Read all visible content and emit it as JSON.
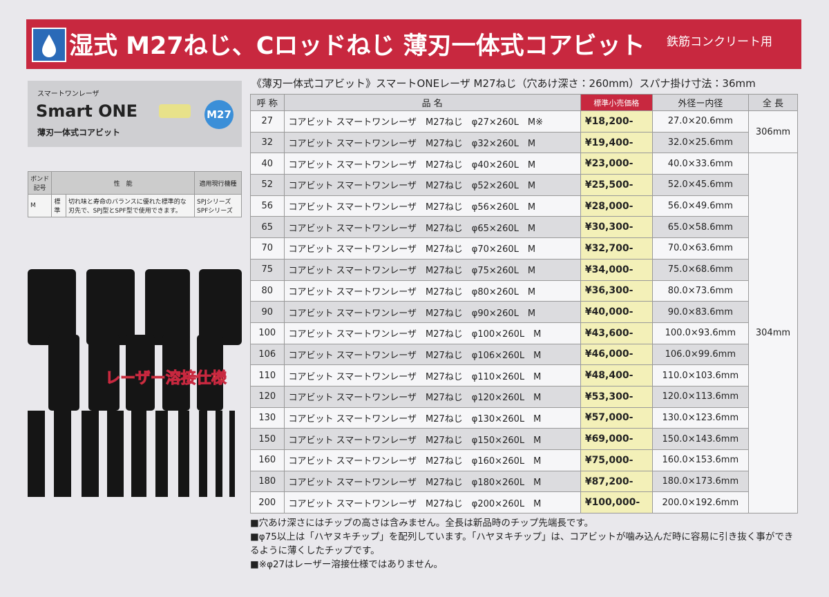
{
  "header": {
    "title": "湿式 M27ねじ、Cロッドねじ 薄刃一体式コアビット",
    "subtitle": "鉄筋コンクリート用"
  },
  "product": {
    "kana": "スマートワンレーザ",
    "brand": "Smart ONE",
    "badge": "M27",
    "type": "薄刃一体式コアビット"
  },
  "spec_table": {
    "headers": [
      "ボンド記号",
      "性　能",
      "適用現行機種"
    ],
    "rows": [
      [
        "M",
        "標準",
        "切れ味と寿命のバランスに優れた標準的な刃先で、SPJ型とSPF型で使用できます。",
        "SPJシリーズ SPFシリーズ"
      ]
    ]
  },
  "image_label": "レーザー溶接仕様",
  "table": {
    "caption": "《薄刃一体式コアビット》スマートONEレーザ M27ねじ（穴あけ深さ：260mm）スパナ掛け寸法：36mm",
    "headers": [
      "呼 称",
      "品 名",
      "標準小売価格",
      "外径ー内径",
      "全 長"
    ],
    "rows": [
      [
        "27",
        "コアビット スマートワンレーザ　M27ねじ　φ27×260L　M※",
        "¥18,200-",
        "27.0×20.6mm"
      ],
      [
        "32",
        "コアビット スマートワンレーザ　M27ねじ　φ32×260L　M",
        "¥19,400-",
        "32.0×25.6mm"
      ],
      [
        "40",
        "コアビット スマートワンレーザ　M27ねじ　φ40×260L　M",
        "¥23,000-",
        "40.0×33.6mm"
      ],
      [
        "52",
        "コアビット スマートワンレーザ　M27ねじ　φ52×260L　M",
        "¥25,500-",
        "52.0×45.6mm"
      ],
      [
        "56",
        "コアビット スマートワンレーザ　M27ねじ　φ56×260L　M",
        "¥28,000-",
        "56.0×49.6mm"
      ],
      [
        "65",
        "コアビット スマートワンレーザ　M27ねじ　φ65×260L　M",
        "¥30,300-",
        "65.0×58.6mm"
      ],
      [
        "70",
        "コアビット スマートワンレーザ　M27ねじ　φ70×260L　M",
        "¥32,700-",
        "70.0×63.6mm"
      ],
      [
        "75",
        "コアビット スマートワンレーザ　M27ねじ　φ75×260L　M",
        "¥34,000-",
        "75.0×68.6mm"
      ],
      [
        "80",
        "コアビット スマートワンレーザ　M27ねじ　φ80×260L　M",
        "¥36,300-",
        "80.0×73.6mm"
      ],
      [
        "90",
        "コアビット スマートワンレーザ　M27ねじ　φ90×260L　M",
        "¥40,000-",
        "90.0×83.6mm"
      ],
      [
        "100",
        "コアビット スマートワンレーザ　M27ねじ　φ100×260L　M",
        "¥43,600-",
        "100.0×93.6mm"
      ],
      [
        "106",
        "コアビット スマートワンレーザ　M27ねじ　φ106×260L　M",
        "¥46,000-",
        "106.0×99.6mm"
      ],
      [
        "110",
        "コアビット スマートワンレーザ　M27ねじ　φ110×260L　M",
        "¥48,400-",
        "110.0×103.6mm"
      ],
      [
        "120",
        "コアビット スマートワンレーザ　M27ねじ　φ120×260L　M",
        "¥53,300-",
        "120.0×113.6mm"
      ],
      [
        "130",
        "コアビット スマートワンレーザ　M27ねじ　φ130×260L　M",
        "¥57,000-",
        "130.0×123.6mm"
      ],
      [
        "150",
        "コアビット スマートワンレーザ　M27ねじ　φ150×260L　M",
        "¥69,000-",
        "150.0×143.6mm"
      ],
      [
        "160",
        "コアビット スマートワンレーザ　M27ねじ　φ160×260L　M",
        "¥75,000-",
        "160.0×153.6mm"
      ],
      [
        "180",
        "コアビット スマートワンレーザ　M27ねじ　φ180×260L　M",
        "¥87,200-",
        "180.0×173.6mm"
      ],
      [
        "200",
        "コアビット スマートワンレーザ　M27ねじ　φ200×260L　M",
        "¥100,000-",
        "200.0×192.6mm"
      ]
    ],
    "lengths": [
      "306mm",
      "304mm"
    ]
  },
  "notes": [
    "■穴あけ深さにはチップの高さは含みません。全長は新品時のチップ先端長です。",
    "■φ75以上は「ハヤヌキチップ」を配列しています。「ハヤヌキチップ」は、コアビットが噛み込んだ時に容易に引き抜く事ができるように薄くしたチップです。",
    "■※φ27はレーザー溶接仕様ではありません。"
  ]
}
